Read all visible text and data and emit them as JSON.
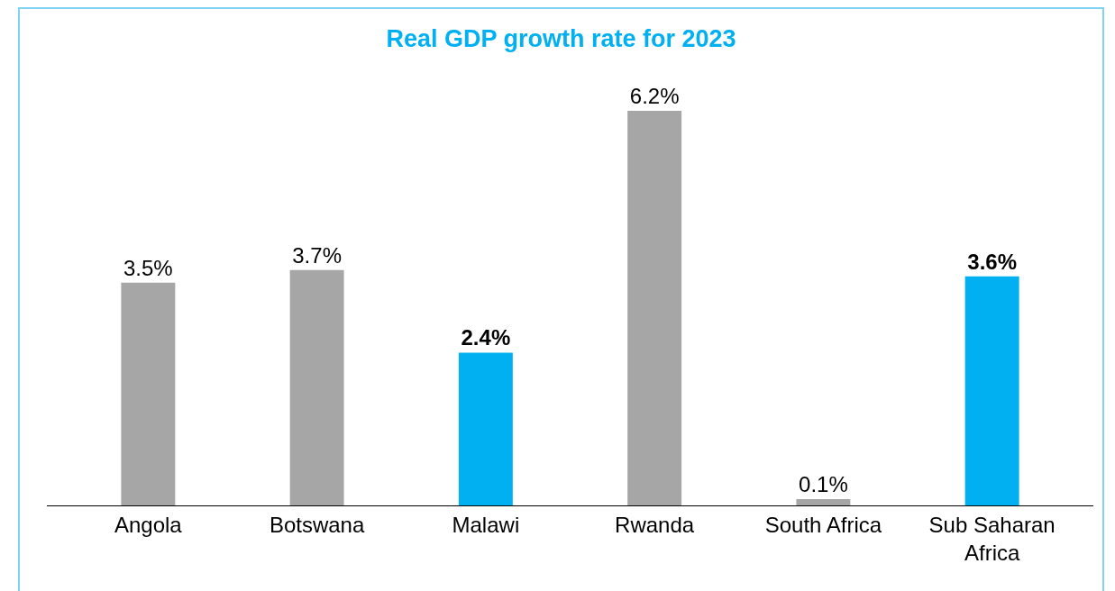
{
  "chart_data": {
    "type": "bar",
    "title": "Real GDP growth rate for 2023",
    "categories": [
      "Angola",
      "Botswana",
      "Malawi",
      "Rwanda",
      "South Africa",
      "Sub Saharan Africa"
    ],
    "values": [
      3.5,
      3.7,
      2.4,
      6.2,
      0.1,
      3.6
    ],
    "colors": [
      "#a6a6a6",
      "#a6a6a6",
      "#00b0f0",
      "#a6a6a6",
      "#a6a6a6",
      "#00b0f0"
    ],
    "value_labels": [
      "3.5%",
      "3.7%",
      "2.4%",
      "6.2%",
      "0.1%",
      "3.6%"
    ],
    "grid": false
  }
}
